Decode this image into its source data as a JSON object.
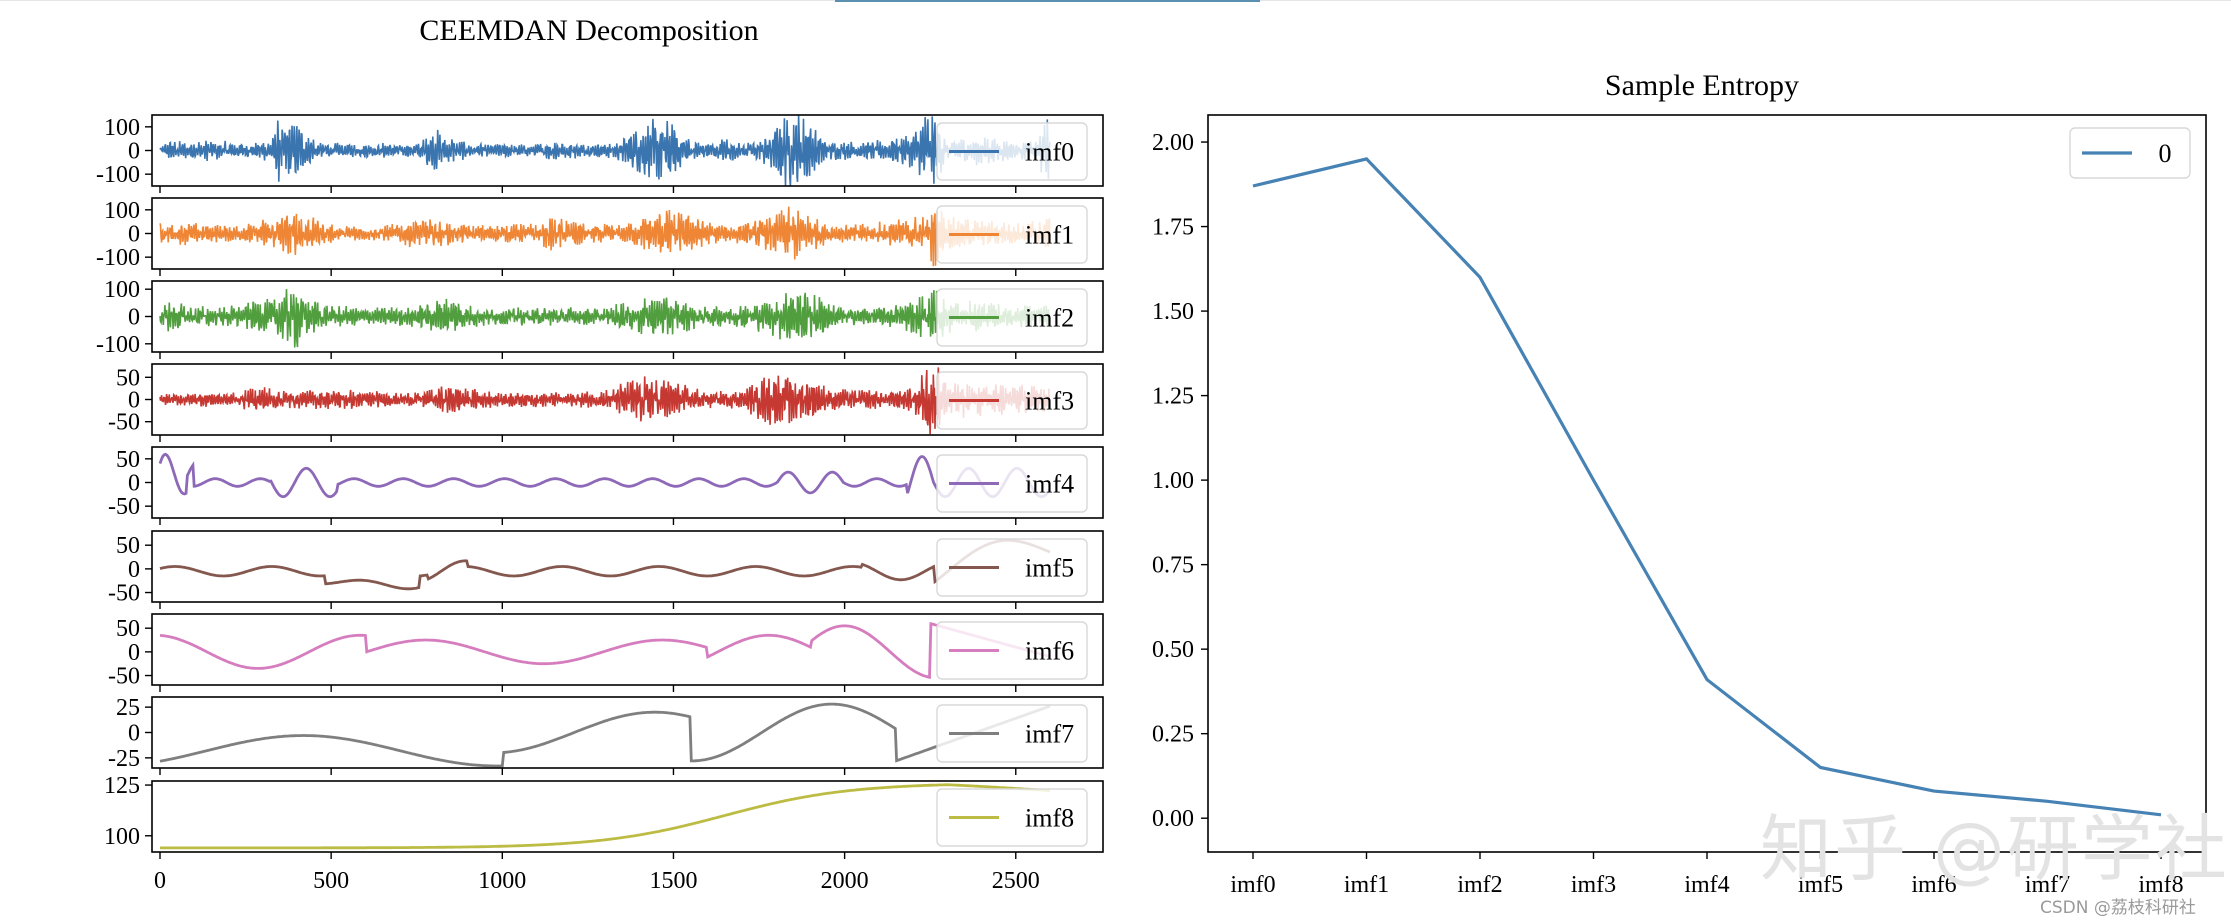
{
  "watermark": "知乎 @研学社",
  "credit": "CSDN @荔枝科研社",
  "chart_data": [
    {
      "type": "line",
      "title": "CEEMDAN Decomposition",
      "x_range": [
        0,
        2600
      ],
      "x_ticks": [
        0,
        500,
        1000,
        1500,
        2000,
        2500
      ],
      "panels": [
        {
          "name": "imf0",
          "color": "#3b75af",
          "yticks": [
            100,
            0,
            -100
          ],
          "ylim": [
            -150,
            150
          ],
          "envelope": [
            [
              0,
              22
            ],
            [
              30,
              38
            ],
            [
              80,
              30
            ],
            [
              150,
              40
            ],
            [
              250,
              25
            ],
            [
              330,
              48
            ],
            [
              345,
              118
            ],
            [
              360,
              90
            ],
            [
              380,
              105
            ],
            [
              400,
              110
            ],
            [
              420,
              70
            ],
            [
              480,
              30
            ],
            [
              560,
              25
            ],
            [
              640,
              28
            ],
            [
              740,
              22
            ],
            [
              800,
              72
            ],
            [
              820,
              80
            ],
            [
              840,
              60
            ],
            [
              900,
              25
            ],
            [
              1000,
              26
            ],
            [
              1100,
              22
            ],
            [
              1150,
              40
            ],
            [
              1250,
              22
            ],
            [
              1330,
              30
            ],
            [
              1380,
              72
            ],
            [
              1440,
              115
            ],
            [
              1480,
              110
            ],
            [
              1520,
              75
            ],
            [
              1560,
              30
            ],
            [
              1650,
              50
            ],
            [
              1700,
              22
            ],
            [
              1790,
              75
            ],
            [
              1830,
              150
            ],
            [
              1860,
              150
            ],
            [
              1890,
              110
            ],
            [
              1950,
              38
            ],
            [
              2050,
              30
            ],
            [
              2120,
              42
            ],
            [
              2200,
              62
            ],
            [
              2240,
              150
            ],
            [
              2262,
              128
            ],
            [
              2300,
              40
            ],
            [
              2400,
              55
            ],
            [
              2500,
              32
            ],
            [
              2560,
              50
            ],
            [
              2590,
              125
            ],
            [
              2600,
              90
            ]
          ]
        },
        {
          "name": "imf1",
          "color": "#ef8636",
          "yticks": [
            100,
            0,
            -100
          ],
          "ylim": [
            -150,
            150
          ],
          "envelope": [
            [
              0,
              40
            ],
            [
              60,
              45
            ],
            [
              150,
              32
            ],
            [
              240,
              30
            ],
            [
              320,
              60
            ],
            [
              400,
              80
            ],
            [
              450,
              60
            ],
            [
              520,
              30
            ],
            [
              600,
              30
            ],
            [
              700,
              38
            ],
            [
              760,
              70
            ],
            [
              820,
              45
            ],
            [
              900,
              35
            ],
            [
              1000,
              32
            ],
            [
              1100,
              38
            ],
            [
              1150,
              65
            ],
            [
              1250,
              38
            ],
            [
              1350,
              30
            ],
            [
              1420,
              65
            ],
            [
              1480,
              90
            ],
            [
              1540,
              75
            ],
            [
              1600,
              40
            ],
            [
              1700,
              35
            ],
            [
              1780,
              70
            ],
            [
              1850,
              100
            ],
            [
              1900,
              65
            ],
            [
              1960,
              32
            ],
            [
              2060,
              35
            ],
            [
              2130,
              50
            ],
            [
              2200,
              60
            ],
            [
              2240,
              95
            ],
            [
              2262,
              125
            ],
            [
              2300,
              60
            ],
            [
              2400,
              50
            ],
            [
              2500,
              40
            ],
            [
              2600,
              60
            ]
          ]
        },
        {
          "name": "imf2",
          "color": "#519e3e",
          "yticks": [
            100,
            0,
            -100
          ],
          "ylim": [
            -130,
            130
          ],
          "envelope": [
            [
              0,
              48
            ],
            [
              50,
              45
            ],
            [
              150,
              30
            ],
            [
              250,
              42
            ],
            [
              320,
              55
            ],
            [
              400,
              110
            ],
            [
              440,
              60
            ],
            [
              500,
              35
            ],
            [
              600,
              28
            ],
            [
              700,
              30
            ],
            [
              780,
              40
            ],
            [
              840,
              65
            ],
            [
              900,
              35
            ],
            [
              1000,
              28
            ],
            [
              1100,
              30
            ],
            [
              1200,
              30
            ],
            [
              1300,
              28
            ],
            [
              1380,
              55
            ],
            [
              1460,
              70
            ],
            [
              1560,
              40
            ],
            [
              1660,
              30
            ],
            [
              1780,
              55
            ],
            [
              1860,
              100
            ],
            [
              1900,
              75
            ],
            [
              2000,
              30
            ],
            [
              2100,
              28
            ],
            [
              2200,
              52
            ],
            [
              2262,
              100
            ],
            [
              2300,
              55
            ],
            [
              2400,
              45
            ],
            [
              2500,
              35
            ],
            [
              2600,
              40
            ]
          ]
        },
        {
          "name": "imf3",
          "color": "#c53932",
          "yticks": [
            50,
            0,
            -50
          ],
          "ylim": [
            -80,
            80
          ],
          "envelope": [
            [
              0,
              10
            ],
            [
              100,
              14
            ],
            [
              200,
              14
            ],
            [
              300,
              25
            ],
            [
              400,
              18
            ],
            [
              500,
              20
            ],
            [
              600,
              18
            ],
            [
              700,
              12
            ],
            [
              780,
              18
            ],
            [
              850,
              30
            ],
            [
              920,
              20
            ],
            [
              1000,
              14
            ],
            [
              1100,
              15
            ],
            [
              1200,
              14
            ],
            [
              1300,
              18
            ],
            [
              1390,
              45
            ],
            [
              1450,
              48
            ],
            [
              1520,
              30
            ],
            [
              1600,
              18
            ],
            [
              1700,
              18
            ],
            [
              1780,
              50
            ],
            [
              1860,
              55
            ],
            [
              1920,
              30
            ],
            [
              2000,
              20
            ],
            [
              2100,
              18
            ],
            [
              2200,
              22
            ],
            [
              2230,
              60
            ],
            [
              2262,
              85
            ],
            [
              2300,
              40
            ],
            [
              2400,
              35
            ],
            [
              2500,
              28
            ],
            [
              2600,
              32
            ]
          ]
        },
        {
          "name": "imf4",
          "color": "#8d69b8",
          "yticks": [
            50,
            0,
            -50
          ],
          "ylim": [
            -75,
            75
          ]
        },
        {
          "name": "imf5",
          "color": "#84584e",
          "yticks": [
            50,
            0,
            -50
          ],
          "ylim": [
            -70,
            80
          ]
        },
        {
          "name": "imf6",
          "color": "#d57dbe",
          "yticks": [
            50,
            0,
            -50
          ],
          "ylim": [
            -70,
            80
          ]
        },
        {
          "name": "imf7",
          "color": "#7f7f7f",
          "yticks": [
            25,
            0,
            -25
          ],
          "ylim": [
            -35,
            35
          ]
        },
        {
          "name": "imf8",
          "color": "#bcbc45",
          "yticks": [
            125,
            100
          ],
          "ylim": [
            92,
            127
          ]
        }
      ]
    },
    {
      "type": "line",
      "title": "Sample Entropy",
      "categories": [
        "imf0",
        "imf1",
        "imf2",
        "imf3",
        "imf4",
        "imf5",
        "imf6",
        "imf7",
        "imf8"
      ],
      "series": [
        {
          "name": "0",
          "color": "#4682b4",
          "values": [
            1.87,
            1.95,
            1.6,
            1.0,
            0.41,
            0.15,
            0.08,
            0.05,
            0.01
          ]
        }
      ],
      "ylim": [
        -0.1,
        2.08
      ],
      "yticks": [
        0.0,
        0.25,
        0.5,
        0.75,
        1.0,
        1.25,
        1.5,
        1.75,
        2.0
      ],
      "ytick_labels": [
        "0.00",
        "0.25",
        "0.50",
        "0.75",
        "1.00",
        "1.25",
        "1.50",
        "1.75",
        "2.00"
      ],
      "legend": "top-right",
      "grid": false
    }
  ]
}
